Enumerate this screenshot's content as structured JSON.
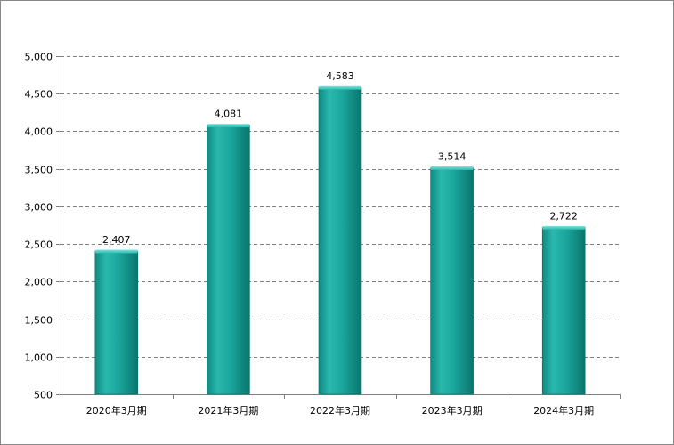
{
  "chart_data": {
    "type": "bar",
    "categories": [
      "2020年3月期",
      "2021年3月期",
      "2022年3月期",
      "2023年3月期",
      "2024年3月期"
    ],
    "values": [
      2407,
      4081,
      4583,
      3514,
      2722
    ],
    "value_labels": [
      "2,407",
      "4,081",
      "4,583",
      "3,514",
      "2,722"
    ],
    "y_ticks": [
      "500",
      "1,000",
      "1,500",
      "2,000",
      "2,500",
      "3,000",
      "3,500",
      "4,000",
      "4,500",
      "5,000"
    ],
    "ylim": [
      500,
      5000
    ],
    "grid": true,
    "grid_style": "dashed",
    "legend": "none",
    "colors": {
      "bar": "#1aa69c",
      "bar_dark": "#0a756e",
      "bar_top": "#3cc8bd",
      "grid": "#808080",
      "axis": "#808080"
    }
  }
}
